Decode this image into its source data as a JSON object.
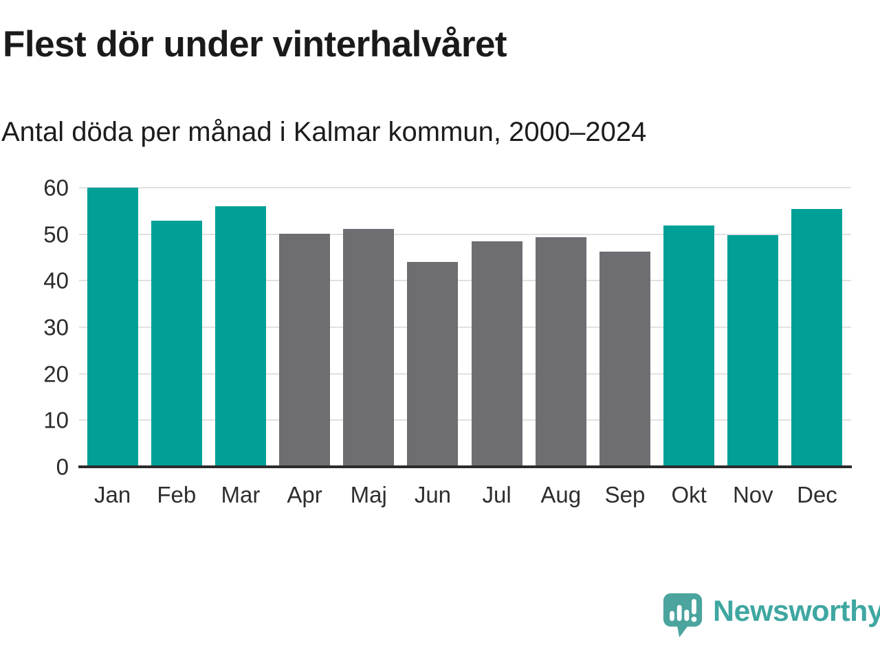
{
  "header": {
    "title": "Flest dör under vinterhalvåret",
    "subtitle": "Antal döda per månad i Kalmar kommun, 2000–2024"
  },
  "chart_data": {
    "type": "bar",
    "title": "Flest dör under vinterhalvåret",
    "subtitle": "Antal döda per månad i Kalmar kommun, 2000–2024",
    "categories": [
      "Jan",
      "Feb",
      "Mar",
      "Apr",
      "Maj",
      "Jun",
      "Jul",
      "Aug",
      "Sep",
      "Okt",
      "Nov",
      "Dec"
    ],
    "values": [
      60.0,
      52.9,
      56.0,
      50.1,
      51.1,
      44.1,
      48.5,
      49.3,
      46.3,
      51.9,
      49.8,
      55.4
    ],
    "bar_groups": [
      "winter",
      "winter",
      "winter",
      "summer",
      "summer",
      "summer",
      "summer",
      "summer",
      "summer",
      "winter",
      "winter",
      "winter"
    ],
    "group_colors": {
      "winter": "#00a096",
      "summer": "#6e6d72"
    },
    "xlabel": "",
    "ylabel": "",
    "ylim": [
      0,
      60
    ],
    "yticks": [
      0,
      10,
      20,
      30,
      40,
      50,
      60
    ],
    "grid": true,
    "legend": false
  },
  "footer": {
    "brand": "Newsworthy",
    "logo_icon": "newsworthy-speech-bubble-chart-icon"
  },
  "colors": {
    "background": "#ffffff",
    "title_text": "#1a1a1a",
    "axis_text": "#2b2b2b",
    "gridline": "#e1e1e1",
    "baseline": "#2b2b2b",
    "bar_teal": "#00a096",
    "bar_gray": "#6e6d72",
    "brand_teal": "#3fa7a1",
    "logo_fill": "#4ba49e"
  }
}
